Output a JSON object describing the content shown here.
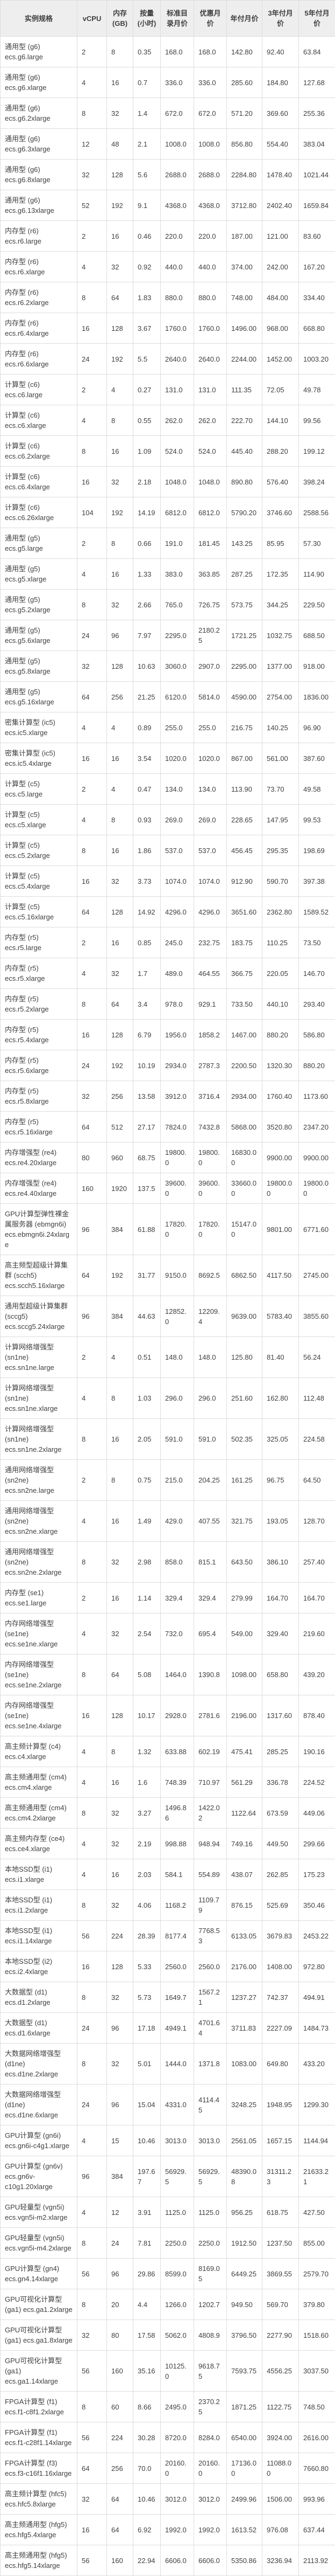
{
  "colors": {
    "header_bg": "#eeeeee",
    "border": "#dddddd",
    "text": "#404040",
    "row_bg": "#ffffff"
  },
  "table": {
    "columns": [
      {
        "key": "spec",
        "label": "实例规格"
      },
      {
        "key": "vcpu",
        "label": "vCPU"
      },
      {
        "key": "mem",
        "label": "内存 (GB)"
      },
      {
        "key": "hourly",
        "label": "按量 (小时)"
      },
      {
        "key": "list_month",
        "label": "标准目录月价"
      },
      {
        "key": "discount_month",
        "label": "优惠月价"
      },
      {
        "key": "year_month",
        "label": "年付月价"
      },
      {
        "key": "three_year_month",
        "label": "3年付月价"
      },
      {
        "key": "five_year_month",
        "label": "5年付月价"
      }
    ],
    "rows": [
      [
        "通用型 (g6) ecs.g6.large",
        "2",
        "8",
        "0.35",
        "168.0",
        "168.0",
        "142.80",
        "92.40",
        "63.84"
      ],
      [
        "通用型 (g6) ecs.g6.xlarge",
        "4",
        "16",
        "0.7",
        "336.0",
        "336.0",
        "285.60",
        "184.80",
        "127.68"
      ],
      [
        "通用型 (g6) ecs.g6.2xlarge",
        "8",
        "32",
        "1.4",
        "672.0",
        "672.0",
        "571.20",
        "369.60",
        "255.36"
      ],
      [
        "通用型 (g6) ecs.g6.3xlarge",
        "12",
        "48",
        "2.1",
        "1008.0",
        "1008.0",
        "856.80",
        "554.40",
        "383.04"
      ],
      [
        "通用型 (g6) ecs.g6.8xlarge",
        "32",
        "128",
        "5.6",
        "2688.0",
        "2688.0",
        "2284.80",
        "1478.40",
        "1021.44"
      ],
      [
        "通用型 (g6) ecs.g6.13xlarge",
        "52",
        "192",
        "9.1",
        "4368.0",
        "4368.0",
        "3712.80",
        "2402.40",
        "1659.84"
      ],
      [
        "内存型 (r6) ecs.r6.large",
        "2",
        "16",
        "0.46",
        "220.0",
        "220.0",
        "187.00",
        "121.00",
        "83.60"
      ],
      [
        "内存型 (r6) ecs.r6.xlarge",
        "4",
        "32",
        "0.92",
        "440.0",
        "440.0",
        "374.00",
        "242.00",
        "167.20"
      ],
      [
        "内存型 (r6) ecs.r6.2xlarge",
        "8",
        "64",
        "1.83",
        "880.0",
        "880.0",
        "748.00",
        "484.00",
        "334.40"
      ],
      [
        "内存型 (r6) ecs.r6.4xlarge",
        "16",
        "128",
        "3.67",
        "1760.0",
        "1760.0",
        "1496.00",
        "968.00",
        "668.80"
      ],
      [
        "内存型 (r6) ecs.r6.6xlarge",
        "24",
        "192",
        "5.5",
        "2640.0",
        "2640.0",
        "2244.00",
        "1452.00",
        "1003.20"
      ],
      [
        "计算型 (c6) ecs.c6.large",
        "2",
        "4",
        "0.27",
        "131.0",
        "131.0",
        "111.35",
        "72.05",
        "49.78"
      ],
      [
        "计算型 (c6) ecs.c6.xlarge",
        "4",
        "8",
        "0.55",
        "262.0",
        "262.0",
        "222.70",
        "144.10",
        "99.56"
      ],
      [
        "计算型 (c6) ecs.c6.2xlarge",
        "8",
        "16",
        "1.09",
        "524.0",
        "524.0",
        "445.40",
        "288.20",
        "199.12"
      ],
      [
        "计算型 (c6) ecs.c6.4xlarge",
        "16",
        "32",
        "2.18",
        "1048.0",
        "1048.0",
        "890.80",
        "576.40",
        "398.24"
      ],
      [
        "计算型 (c6) ecs.c6.26xlarge",
        "104",
        "192",
        "14.19",
        "6812.0",
        "6812.0",
        "5790.20",
        "3746.60",
        "2588.56"
      ],
      [
        "通用型 (g5) ecs.g5.large",
        "2",
        "8",
        "0.66",
        "191.0",
        "181.45",
        "143.25",
        "85.95",
        "57.30"
      ],
      [
        "通用型 (g5) ecs.g5.xlarge",
        "4",
        "16",
        "1.33",
        "383.0",
        "363.85",
        "287.25",
        "172.35",
        "114.90"
      ],
      [
        "通用型 (g5) ecs.g5.2xlarge",
        "8",
        "32",
        "2.66",
        "765.0",
        "726.75",
        "573.75",
        "344.25",
        "229.50"
      ],
      [
        "通用型 (g5) ecs.g5.6xlarge",
        "24",
        "96",
        "7.97",
        "2295.0",
        "2180.25",
        "1721.25",
        "1032.75",
        "688.50"
      ],
      [
        "通用型 (g5) ecs.g5.8xlarge",
        "32",
        "128",
        "10.63",
        "3060.0",
        "2907.0",
        "2295.00",
        "1377.00",
        "918.00"
      ],
      [
        "通用型 (g5) ecs.g5.16xlarge",
        "64",
        "256",
        "21.25",
        "6120.0",
        "5814.0",
        "4590.00",
        "2754.00",
        "1836.00"
      ],
      [
        "密集计算型 (ic5) ecs.ic5.xlarge",
        "4",
        "4",
        "0.89",
        "255.0",
        "255.0",
        "216.75",
        "140.25",
        "96.90"
      ],
      [
        "密集计算型 (ic5) ecs.ic5.4xlarge",
        "16",
        "16",
        "3.54",
        "1020.0",
        "1020.0",
        "867.00",
        "561.00",
        "387.60"
      ],
      [
        "计算型 (c5) ecs.c5.large",
        "2",
        "4",
        "0.47",
        "134.0",
        "134.0",
        "113.90",
        "73.70",
        "49.58"
      ],
      [
        "计算型 (c5) ecs.c5.xlarge",
        "4",
        "8",
        "0.93",
        "269.0",
        "269.0",
        "228.65",
        "147.95",
        "99.53"
      ],
      [
        "计算型 (c5) ecs.c5.2xlarge",
        "8",
        "16",
        "1.86",
        "537.0",
        "537.0",
        "456.45",
        "295.35",
        "198.69"
      ],
      [
        "计算型 (c5) ecs.c5.4xlarge",
        "16",
        "32",
        "3.73",
        "1074.0",
        "1074.0",
        "912.90",
        "590.70",
        "397.38"
      ],
      [
        "计算型 (c5) ecs.c5.16xlarge",
        "64",
        "128",
        "14.92",
        "4296.0",
        "4296.0",
        "3651.60",
        "2362.80",
        "1589.52"
      ],
      [
        "内存型 (r5) ecs.r5.large",
        "2",
        "16",
        "0.85",
        "245.0",
        "232.75",
        "183.75",
        "110.25",
        "73.50"
      ],
      [
        "内存型 (r5) ecs.r5.xlarge",
        "4",
        "32",
        "1.7",
        "489.0",
        "464.55",
        "366.75",
        "220.05",
        "146.70"
      ],
      [
        "内存型 (r5) ecs.r5.2xlarge",
        "8",
        "64",
        "3.4",
        "978.0",
        "929.1",
        "733.50",
        "440.10",
        "293.40"
      ],
      [
        "内存型 (r5) ecs.r5.4xlarge",
        "16",
        "128",
        "6.79",
        "1956.0",
        "1858.2",
        "1467.00",
        "880.20",
        "586.80"
      ],
      [
        "内存型 (r5) ecs.r5.6xlarge",
        "24",
        "192",
        "10.19",
        "2934.0",
        "2787.3",
        "2200.50",
        "1320.30",
        "880.20"
      ],
      [
        "内存型 (r5) ecs.r5.8xlarge",
        "32",
        "256",
        "13.58",
        "3912.0",
        "3716.4",
        "2934.00",
        "1760.40",
        "1173.60"
      ],
      [
        "内存型 (r5) ecs.r5.16xlarge",
        "64",
        "512",
        "27.17",
        "7824.0",
        "7432.8",
        "5868.00",
        "3520.80",
        "2347.20"
      ],
      [
        "内存增强型 (re4) ecs.re4.20xlarge",
        "80",
        "960",
        "68.75",
        "19800.0",
        "19800.0",
        "16830.00",
        "9900.00",
        "9900.00"
      ],
      [
        "内存增强型 (re4) ecs.re4.40xlarge",
        "160",
        "1920",
        "137.5",
        "39600.0",
        "39600.0",
        "33660.00",
        "19800.00",
        "19800.00"
      ],
      [
        "GPU计算型弹性裸金属服务器 (ebmgn6i) ecs.ebmgn6i.24xlarge",
        "96",
        "384",
        "61.88",
        "17820.0",
        "17820.0",
        "15147.00",
        "9801.00",
        "6771.60"
      ],
      [
        "高主频型超级计算集群 (scch5) ecs.scch5.16xlarge",
        "64",
        "192",
        "31.77",
        "9150.0",
        "8692.5",
        "6862.50",
        "4117.50",
        "2745.00"
      ],
      [
        "通用型超级计算集群 (sccg5) ecs.sccg5.24xlarge",
        "96",
        "384",
        "44.63",
        "12852.0",
        "12209.4",
        "9639.00",
        "5783.40",
        "3855.60"
      ],
      [
        "计算网络增强型 (sn1ne) ecs.sn1ne.large",
        "2",
        "4",
        "0.51",
        "148.0",
        "148.0",
        "125.80",
        "81.40",
        "56.24"
      ],
      [
        "计算网络增强型 (sn1ne) ecs.sn1ne.xlarge",
        "4",
        "8",
        "1.03",
        "296.0",
        "296.0",
        "251.60",
        "162.80",
        "112.48"
      ],
      [
        "计算网络增强型 (sn1ne) ecs.sn1ne.2xlarge",
        "8",
        "16",
        "2.05",
        "591.0",
        "591.0",
        "502.35",
        "325.05",
        "224.58"
      ],
      [
        "通用网络增强型 (sn2ne) ecs.sn2ne.large",
        "2",
        "8",
        "0.75",
        "215.0",
        "204.25",
        "161.25",
        "96.75",
        "64.50"
      ],
      [
        "通用网络增强型 (sn2ne) ecs.sn2ne.xlarge",
        "4",
        "16",
        "1.49",
        "429.0",
        "407.55",
        "321.75",
        "193.05",
        "128.70"
      ],
      [
        "通用网络增强型 (sn2ne) ecs.sn2ne.2xlarge",
        "8",
        "32",
        "2.98",
        "858.0",
        "815.1",
        "643.50",
        "386.10",
        "257.40"
      ],
      [
        "内存型 (se1) ecs.se1.large",
        "2",
        "16",
        "1.14",
        "329.4",
        "329.4",
        "279.99",
        "164.70",
        "164.70"
      ],
      [
        "内存网络增强型 (se1ne) ecs.se1ne.xlarge",
        "4",
        "32",
        "2.54",
        "732.0",
        "695.4",
        "549.00",
        "329.40",
        "219.60"
      ],
      [
        "内存网络增强型 (se1ne) ecs.se1ne.2xlarge",
        "8",
        "64",
        "5.08",
        "1464.0",
        "1390.8",
        "1098.00",
        "658.80",
        "439.20"
      ],
      [
        "内存网络增强型 (se1ne) ecs.se1ne.4xlarge",
        "16",
        "128",
        "10.17",
        "2928.0",
        "2781.6",
        "2196.00",
        "1317.60",
        "878.40"
      ],
      [
        "高主频计算型 (c4) ecs.c4.xlarge",
        "4",
        "8",
        "1.32",
        "633.88",
        "602.19",
        "475.41",
        "285.25",
        "190.16"
      ],
      [
        "高主频通用型 (cm4) ecs.cm4.xlarge",
        "4",
        "16",
        "1.6",
        "748.39",
        "710.97",
        "561.29",
        "336.78",
        "224.52"
      ],
      [
        "高主频通用型 (cm4) ecs.cm4.2xlarge",
        "8",
        "32",
        "3.27",
        "1496.86",
        "1422.02",
        "1122.64",
        "673.59",
        "449.06"
      ],
      [
        "高主频内存型 (ce4) ecs.ce4.xlarge",
        "4",
        "32",
        "2.19",
        "998.88",
        "948.94",
        "749.16",
        "449.50",
        "299.66"
      ],
      [
        "本地SSD型 (i1) ecs.i1.xlarge",
        "4",
        "16",
        "2.03",
        "584.1",
        "554.89",
        "438.07",
        "262.85",
        "175.23"
      ],
      [
        "本地SSD型 (i1) ecs.i1.2xlarge",
        "8",
        "32",
        "4.06",
        "1168.2",
        "1109.79",
        "876.15",
        "525.69",
        "350.46"
      ],
      [
        "本地SSD型 (i1) ecs.i1.14xlarge",
        "56",
        "224",
        "28.39",
        "8177.4",
        "7768.53",
        "6133.05",
        "3679.83",
        "2453.22"
      ],
      [
        "本地SSD型 (i2) ecs.i2.4xlarge",
        "16",
        "128",
        "5.33",
        "2560.0",
        "2560.0",
        "2176.00",
        "1408.00",
        "972.80"
      ],
      [
        "大数据型 (d1) ecs.d1.2xlarge",
        "8",
        "32",
        "5.73",
        "1649.7",
        "1567.21",
        "1237.27",
        "742.37",
        "494.91"
      ],
      [
        "大数据型 (d1) ecs.d1.6xlarge",
        "24",
        "96",
        "17.18",
        "4949.1",
        "4701.64",
        "3711.83",
        "2227.09",
        "1484.73"
      ],
      [
        "大数据网络增强型 (d1ne) ecs.d1ne.2xlarge",
        "8",
        "32",
        "5.01",
        "1444.0",
        "1371.8",
        "1083.00",
        "649.80",
        "433.20"
      ],
      [
        "大数据网络增强型 (d1ne) ecs.d1ne.6xlarge",
        "24",
        "96",
        "15.04",
        "4331.0",
        "4114.45",
        "3248.25",
        "1948.95",
        "1299.30"
      ],
      [
        "GPU计算型 (gn6i) ecs.gn6i-c4g1.xlarge",
        "4",
        "15",
        "10.46",
        "3013.0",
        "3013.0",
        "2561.05",
        "1657.15",
        "1144.94"
      ],
      [
        "GPU计算型 (gn6v) ecs.gn6v-c10g1.20xlarge",
        "96",
        "384",
        "197.67",
        "56929.5",
        "56929.5",
        "48390.08",
        "31311.23",
        "21633.21"
      ],
      [
        "GPU轻量型 (vgn5i) ecs.vgn5i-m2.xlarge",
        "4",
        "12",
        "3.91",
        "1125.0",
        "1125.0",
        "956.25",
        "618.75",
        "427.50"
      ],
      [
        "GPU轻量型 (vgn5i) ecs.vgn5i-m4.2xlarge",
        "8",
        "24",
        "7.81",
        "2250.0",
        "2250.0",
        "1912.50",
        "1237.50",
        "855.00"
      ],
      [
        "GPU计算型 (gn4) ecs.gn4.14xlarge",
        "56",
        "96",
        "29.86",
        "8599.0",
        "8169.05",
        "6449.25",
        "3869.55",
        "2579.70"
      ],
      [
        "GPU可视化计算型 (ga1) ecs.ga1.2xlarge",
        "8",
        "20",
        "4.4",
        "1266.0",
        "1202.7",
        "949.50",
        "569.70",
        "379.80"
      ],
      [
        "GPU可视化计算型 (ga1) ecs.ga1.8xlarge",
        "32",
        "80",
        "17.58",
        "5062.0",
        "4808.9",
        "3796.50",
        "2277.90",
        "1518.60"
      ],
      [
        "GPU可视化计算型 (ga1) ecs.ga1.14xlarge",
        "56",
        "160",
        "35.16",
        "10125.0",
        "9618.75",
        "7593.75",
        "4556.25",
        "3037.50"
      ],
      [
        "FPGA计算型 (f1) ecs.f1-c8f1.2xlarge",
        "8",
        "60",
        "8.66",
        "2495.0",
        "2370.25",
        "1871.25",
        "1122.75",
        "748.50"
      ],
      [
        "FPGA计算型 (f1) ecs.f1-c28f1.14xlarge",
        "56",
        "224",
        "30.28",
        "8720.0",
        "8284.0",
        "6540.00",
        "3924.00",
        "2616.00"
      ],
      [
        "FPGA计算型 (f3) ecs.f3-c16f1.16xlarge",
        "64",
        "256",
        "70.0",
        "20160.0",
        "20160.0",
        "17136.00",
        "11088.00",
        "7660.80"
      ],
      [
        "高主频计算型 (hfc5) ecs.hfc5.8xlarge",
        "32",
        "64",
        "10.46",
        "3012.0",
        "3012.0",
        "2499.96",
        "1506.00",
        "993.96"
      ],
      [
        "高主频通用型 (hfg5) ecs.hfg5.4xlarge",
        "16",
        "64",
        "6.92",
        "1992.0",
        "1992.0",
        "1613.52",
        "976.08",
        "637.44"
      ],
      [
        "高主频通用型 (hfg5) ecs.hfg5.14xlarge",
        "56",
        "160",
        "22.94",
        "6606.0",
        "6606.0",
        "5350.86",
        "3236.94",
        "2113.92"
      ]
    ]
  }
}
